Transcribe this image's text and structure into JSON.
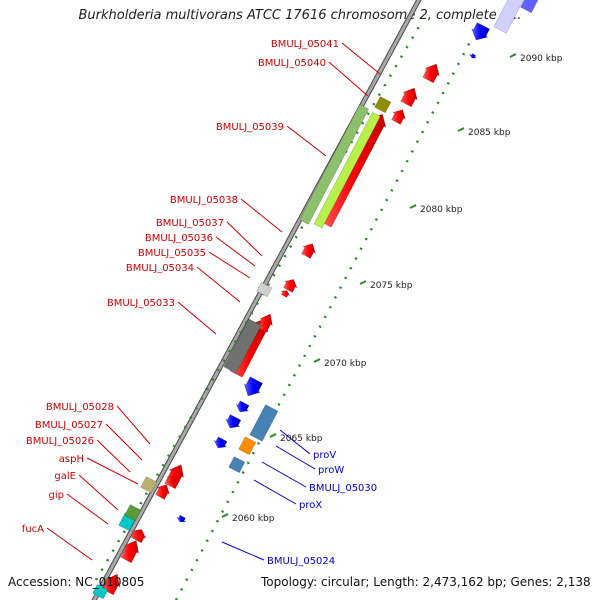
{
  "title": "Burkholderia multivorans ATCC 17616 chromosome 2, complete g...",
  "footer": {
    "accession": "Accession: NC_010805",
    "summary": "Topology: circular; Length: 2,473,162 bp; Genes: 2,138"
  },
  "colors": {
    "backbone": "#8c8c8c",
    "forward_cds": "#ff0000",
    "reverse_cds": "#0000ff",
    "rrna_green": "#9acd32",
    "grey_feature": "#707070",
    "olive_feature": "#8f8f00",
    "orange_feature": "#ff8c00",
    "steelblue_feature": "#4682b4",
    "cyan_feature": "#00c8c8",
    "tick": "#2a8a2a",
    "label_red": "#cc0000",
    "label_blue": "#0000cc"
  },
  "scale": {
    "ticks": [
      {
        "label": "2060 kbp"
      },
      {
        "label": "2065 kbp"
      },
      {
        "label": "2070 kbp"
      },
      {
        "label": "2075 kbp"
      },
      {
        "label": "2080 kbp"
      },
      {
        "label": "2085 kbp"
      },
      {
        "label": "2090 kbp"
      }
    ]
  },
  "genes_left": [
    {
      "name": "BMULJ_05041"
    },
    {
      "name": "BMULJ_05040"
    },
    {
      "name": "BMULJ_05039"
    },
    {
      "name": "BMULJ_05038"
    },
    {
      "name": "BMULJ_05037"
    },
    {
      "name": "BMULJ_05036"
    },
    {
      "name": "BMULJ_05035"
    },
    {
      "name": "BMULJ_05034"
    },
    {
      "name": "BMULJ_05033"
    },
    {
      "name": "BMULJ_05028"
    },
    {
      "name": "BMULJ_05027"
    },
    {
      "name": "BMULJ_05026"
    },
    {
      "name": "aspH"
    },
    {
      "name": "galE"
    },
    {
      "name": "gip"
    },
    {
      "name": "fucA"
    }
  ],
  "genes_right": [
    {
      "name": "proV"
    },
    {
      "name": "proW"
    },
    {
      "name": "BMULJ_05030"
    },
    {
      "name": "proX"
    },
    {
      "name": "BMULJ_05024"
    }
  ]
}
